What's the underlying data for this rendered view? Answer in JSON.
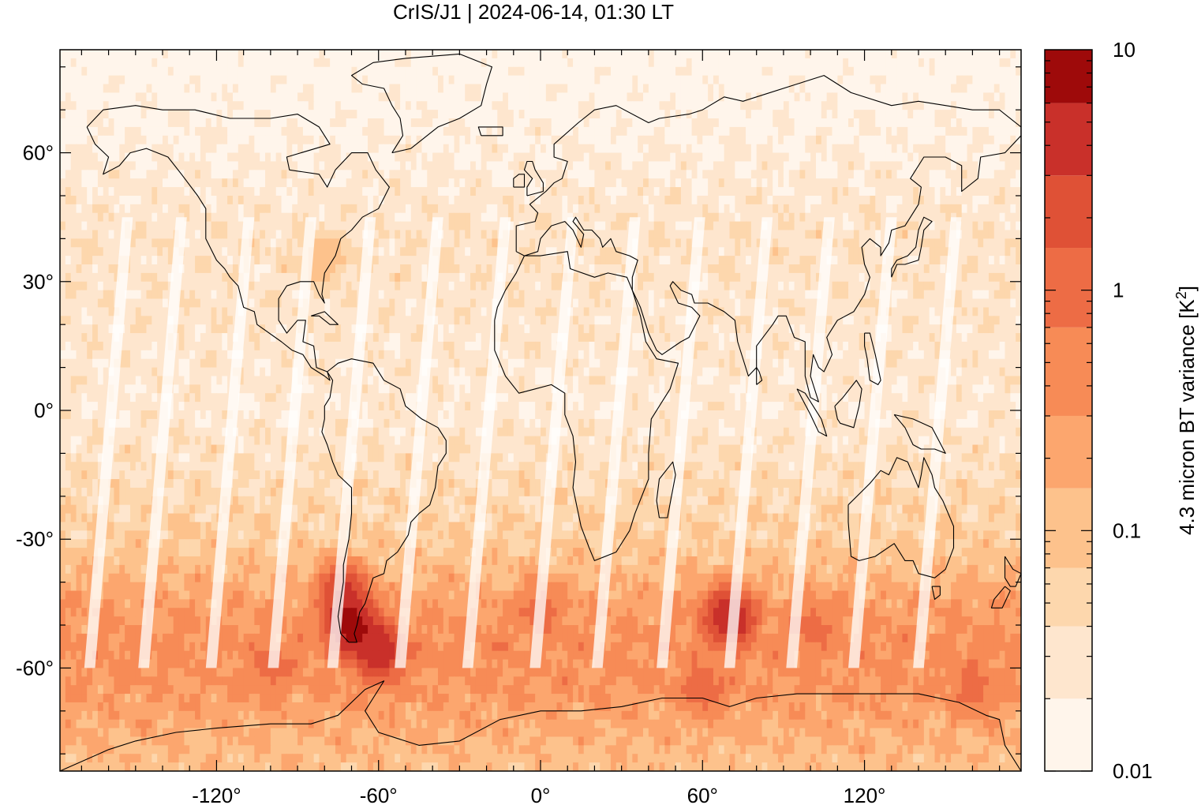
{
  "chart_data": {
    "type": "heatmap",
    "title": "CrIS/J1 | 2024-06-14, 01:30 LT",
    "projection": "equirectangular world map with coastlines",
    "x_ticks": [
      {
        "value": -120,
        "label": "-120°"
      },
      {
        "value": -60,
        "label": "-60°"
      },
      {
        "value": 0,
        "label": "0°"
      },
      {
        "value": 60,
        "label": "60°"
      },
      {
        "value": 120,
        "label": "120°"
      }
    ],
    "y_ticks": [
      {
        "value": 60,
        "label": "60°"
      },
      {
        "value": 30,
        "label": "30°"
      },
      {
        "value": 0,
        "label": "0°"
      },
      {
        "value": -30,
        "label": "-30°"
      },
      {
        "value": -60,
        "label": "-60°"
      }
    ],
    "xlim": [
      -178,
      178
    ],
    "ylim": [
      -84,
      84
    ],
    "colorbar": {
      "label_main": "4.3 micron BT variance [K",
      "label_sup": "2",
      "label_end": "]",
      "scale": "log",
      "range": [
        0.01,
        10
      ],
      "tick_labels": [
        {
          "value": 10,
          "label": "10"
        },
        {
          "value": 1,
          "label": "1"
        },
        {
          "value": 0.1,
          "label": "0.1"
        },
        {
          "value": 0.01,
          "label": "0.01"
        }
      ],
      "levels": [
        {
          "from": 0.01,
          "to": 0.02,
          "color": "#fff5eb"
        },
        {
          "from": 0.02,
          "to": 0.04,
          "color": "#fee6ce"
        },
        {
          "from": 0.04,
          "to": 0.07,
          "color": "#fdd7ad"
        },
        {
          "from": 0.07,
          "to": 0.15,
          "color": "#fdc28c"
        },
        {
          "from": 0.15,
          "to": 0.3,
          "color": "#fca66e"
        },
        {
          "from": 0.3,
          "to": 0.7,
          "color": "#f78b56"
        },
        {
          "from": 0.7,
          "to": 1.5,
          "color": "#ed6c45"
        },
        {
          "from": 1.5,
          "to": 3,
          "color": "#df5136"
        },
        {
          "from": 3,
          "to": 6,
          "color": "#c9302a"
        },
        {
          "from": 6,
          "to": 10,
          "color": "#9e0a0a"
        }
      ]
    },
    "field": {
      "background_value": 0.02,
      "latitude_profile": [
        {
          "lat": 84,
          "value": 0.012
        },
        {
          "lat": 60,
          "value": 0.02
        },
        {
          "lat": 40,
          "value": 0.035
        },
        {
          "lat": 0,
          "value": 0.025
        },
        {
          "lat": -30,
          "value": 0.07
        },
        {
          "lat": -45,
          "value": 0.25
        },
        {
          "lat": -55,
          "value": 0.4
        },
        {
          "lat": -65,
          "value": 0.3
        },
        {
          "lat": -84,
          "value": 0.1
        }
      ],
      "hotspots": [
        {
          "lon": -70,
          "lat": -50,
          "value": 8
        },
        {
          "lon": -60,
          "lat": -56,
          "value": 5
        },
        {
          "lon": -73,
          "lat": -42,
          "value": 3
        },
        {
          "lon": 70,
          "lat": -48,
          "value": 6
        },
        {
          "lon": 0,
          "lat": -46,
          "value": 0.8
        },
        {
          "lon": 60,
          "lat": -65,
          "value": 0.9
        },
        {
          "lon": 100,
          "lat": -50,
          "value": 0.7
        },
        {
          "lon": 160,
          "lat": -65,
          "value": 0.8
        },
        {
          "lon": -100,
          "lat": -60,
          "value": 0.7
        },
        {
          "lon": -80,
          "lat": 35,
          "value": 0.1
        }
      ]
    }
  }
}
